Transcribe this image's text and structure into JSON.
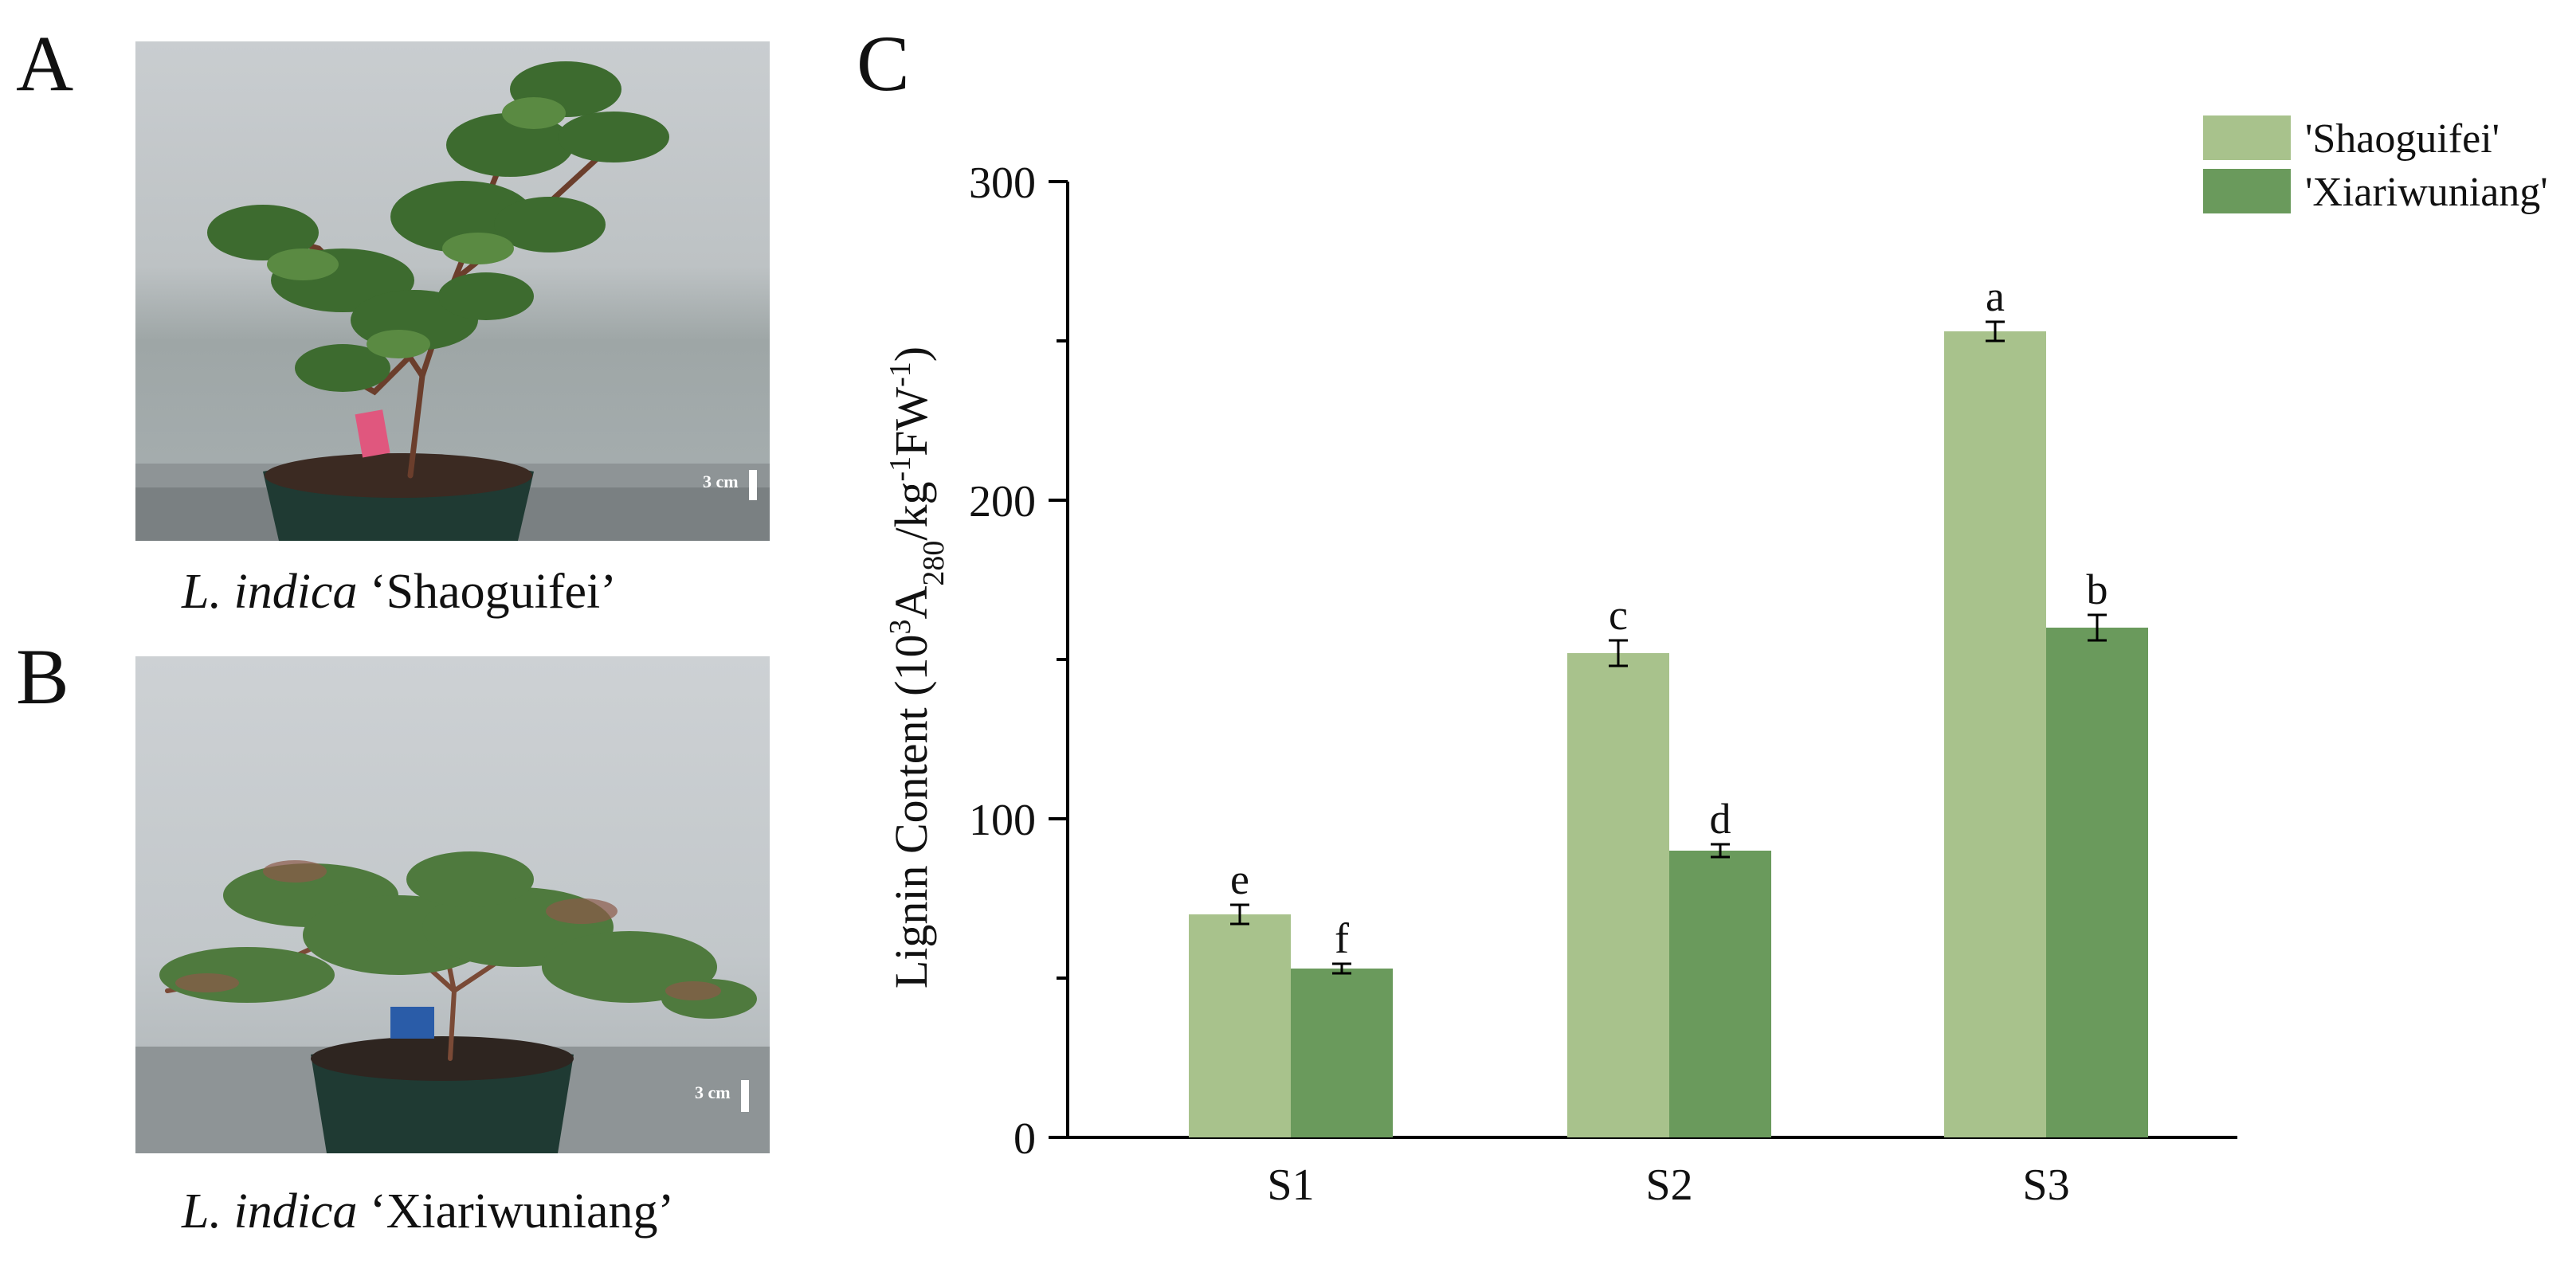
{
  "panels": {
    "a": {
      "letter": "A",
      "caption_italic": "L. indica",
      "caption_cultivar": "‘Shaoguifei’",
      "scale_label": "3 cm"
    },
    "b": {
      "letter": "B",
      "caption_italic": "L. indica",
      "caption_cultivar": "‘Xiariwuniang’",
      "scale_label": "3 cm"
    },
    "c": {
      "letter": "C"
    }
  },
  "colors": {
    "shaoguifei": "#a8c28c",
    "xiariwuniang": "#6a9a5c",
    "axis": "#000000"
  },
  "chart_data": {
    "type": "bar",
    "title": "",
    "xlabel": "",
    "ylabel": "Lignin Content (10³A₂₈₀/kg⁻¹FW⁻¹)",
    "ylabel_parts": {
      "prefix": "Lignin Content (10",
      "sup1": "3",
      "mid1": "A",
      "sub1": "280",
      "mid2": "/kg",
      "sup2": "-1",
      "mid3": "FW",
      "sup3": "-1",
      "suffix": ")"
    },
    "ylim": [
      0,
      300
    ],
    "yticks": [
      0,
      100,
      200,
      300
    ],
    "categories": [
      "S1",
      "S2",
      "S3"
    ],
    "series": [
      {
        "name": "'Shaoguifei'",
        "values": [
          70,
          152,
          253
        ],
        "errors": [
          3,
          4,
          3
        ],
        "letters": [
          "e",
          "c",
          "a"
        ]
      },
      {
        "name": "'Xiariwuniang'",
        "values": [
          53,
          90,
          160
        ],
        "errors": [
          1.5,
          2,
          4
        ],
        "letters": [
          "f",
          "d",
          "b"
        ]
      }
    ],
    "legend": "top-right"
  }
}
